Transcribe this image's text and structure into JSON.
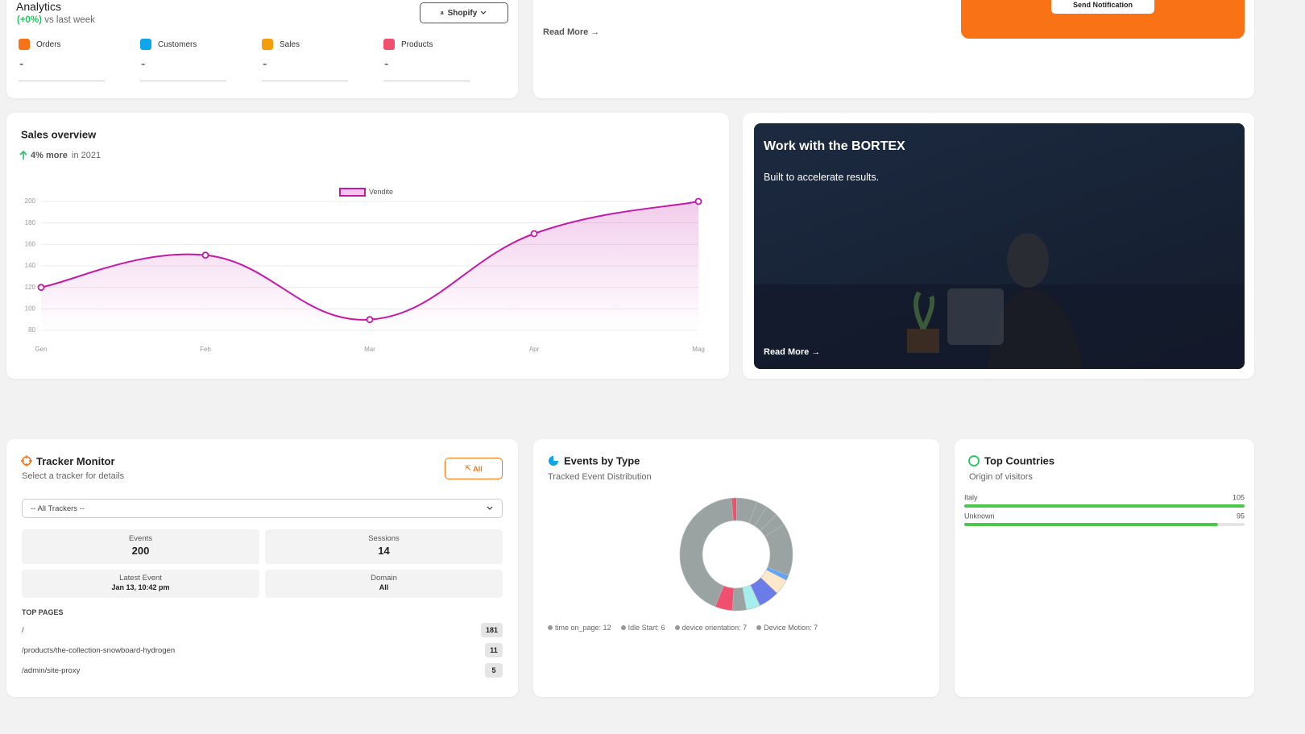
{
  "analytics": {
    "title": "Analytics",
    "change": "(+0%)",
    "change_note": "vs last week",
    "store_button": "Shopify",
    "stats": [
      {
        "label": "Orders",
        "value": "-"
      },
      {
        "label": "Customers",
        "value": "-"
      },
      {
        "label": "Sales",
        "value": "-"
      },
      {
        "label": "Products",
        "value": "-"
      }
    ]
  },
  "notification": {
    "link": "Read More",
    "button": "Send Notification"
  },
  "promo": {
    "title": "Work with the BORTEX",
    "text": "Built to accelerate results.",
    "link": "Read More"
  },
  "tracker": {
    "title": "Tracker Monitor",
    "subtitle": "Select a tracker for details",
    "button": "All",
    "select": "-- All Trackers --",
    "stats": [
      {
        "label": "Events",
        "value": "200"
      },
      {
        "label": "Sessions",
        "value": "14"
      },
      {
        "label": "Latest Event",
        "value": "Jan 13, 10:42 pm"
      },
      {
        "label": "Domain",
        "value": "All"
      }
    ],
    "pages_heading": "TOP PAGES",
    "pages": [
      {
        "path": "/",
        "count": "181"
      },
      {
        "path": "/products/the-collection-snowboard-hydrogen",
        "count": "11"
      },
      {
        "path": "/admin/site-proxy",
        "count": "5"
      }
    ]
  },
  "chart_data": [
    {
      "type": "line",
      "title": "Sales overview",
      "subtitle_strong": "4% more",
      "subtitle": "in 2021",
      "categories": [
        "Gen",
        "Feb",
        "Mar",
        "Apr",
        "Mag"
      ],
      "series": [
        {
          "name": "Vendite",
          "color": "#c21aa6",
          "values": [
            120,
            150,
            90,
            170,
            200
          ]
        }
      ],
      "ylim": [
        80,
        200
      ],
      "yticks": [
        80,
        100,
        120,
        140,
        160,
        180,
        200
      ],
      "grid": true
    },
    {
      "type": "pie",
      "title": "Events by Type",
      "subtitle": "Tracked Event Distribution",
      "values": [
        3,
        12,
        6,
        7,
        7,
        30,
        3,
        9,
        12,
        8,
        8,
        10,
        85
      ],
      "value_labels": [
        null,
        "time on_page: 12",
        "Idle Start: 6",
        "device orientation: 7",
        "Device Motion: 7",
        null,
        null,
        null,
        null,
        null,
        null,
        null,
        null
      ],
      "colors": [
        "#f0506e",
        "#9aa2a2",
        "#9aa2a2",
        "#9aa2a2",
        "#9aa2a2",
        "#9aa2a2",
        "#60a5fa",
        "#fde8cc",
        "#6b7be8",
        "#a5f0ec",
        "#9aa2a2",
        "#f0506e",
        "#9aa2a2"
      ]
    },
    {
      "type": "hbar",
      "title": "Top Countries",
      "subtitle": "Origin of visitors",
      "categories": [
        "Italy",
        "Unknown"
      ],
      "values": [
        105,
        95
      ],
      "xlim": [
        0,
        105
      ],
      "color": "#4cc74a"
    }
  ]
}
